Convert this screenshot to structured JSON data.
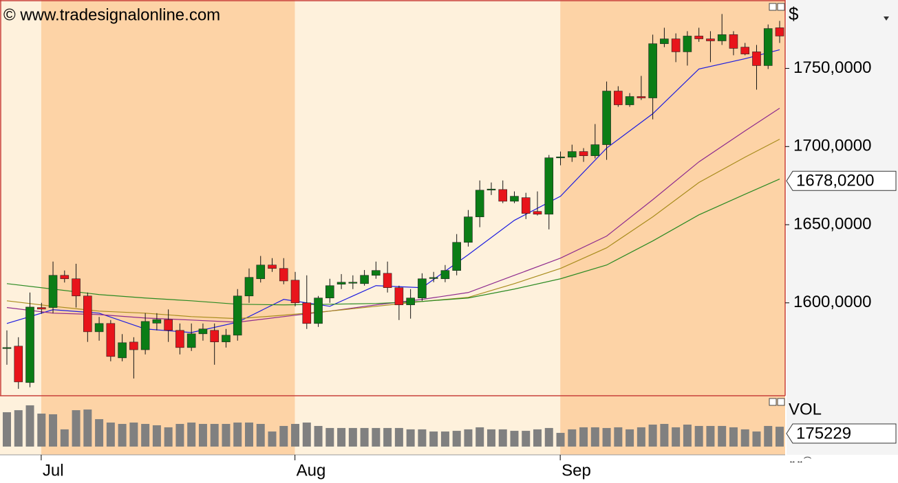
{
  "chart_data": {
    "type": "candlestick",
    "watermark": "© www.tradesignalonline.com",
    "y_axis_label": "$",
    "categories": [
      null,
      null,
      null,
      "Jul",
      null,
      null,
      null,
      null,
      null,
      null,
      null,
      null,
      null,
      null,
      null,
      null,
      null,
      null,
      null,
      null,
      null,
      null,
      null,
      null,
      null,
      "Aug",
      null,
      null,
      null,
      null,
      null,
      null,
      null,
      null,
      null,
      null,
      null,
      null,
      null,
      null,
      null,
      null,
      null,
      null,
      null,
      null,
      null,
      null,
      "Sep",
      null,
      null,
      null,
      null,
      null,
      null,
      null,
      null,
      null,
      null,
      null,
      null,
      null,
      null,
      null,
      null,
      null,
      null,
      null
    ],
    "open": [
      1571.0,
      1572.3,
      1549.0,
      1597.0,
      1597.0,
      1617.6,
      1615.4,
      1604.4,
      1581.5,
      1586.8,
      1564.8,
      1574.9,
      1570.0,
      1587.0,
      1589.3,
      1582.4,
      1571.4,
      1580.2,
      1582.4,
      1575.0,
      1579.3,
      1604.4,
      1615.4,
      1624.2,
      1622.0,
      1614.5,
      1600.0,
      1586.8,
      1603.1,
      1611.9,
      1613.0,
      1612.3,
      1617.6,
      1618.9,
      1609.7,
      1598.7,
      1603.1,
      1615.8,
      1615.4,
      1620.7,
      1638.7,
      1655.0,
      1672.5,
      1672.5,
      1665.0,
      1667.3,
      1658.5,
      1656.7,
      1693.2,
      1693.2,
      1696.8,
      1694.1,
      1701.2,
      1735.5,
      1726.7,
      1732.0,
      1731.1,
      1765.8,
      1768.9,
      1760.6,
      1770.7,
      1768.9,
      1767.6,
      1771.6,
      1763.6,
      1760.6,
      1751.8,
      1776.0
    ],
    "high": [
      1582.4,
      1578.0,
      1606.6,
      1600.0,
      1626.4,
      1620.7,
      1625.0,
      1606.6,
      1591.0,
      1589.0,
      1580.0,
      1578.0,
      1593.4,
      1593.4,
      1595.8,
      1586.8,
      1586.8,
      1586.8,
      1586.8,
      1583.3,
      1608.8,
      1622.0,
      1630.0,
      1628.6,
      1628.6,
      1619.8,
      1617.6,
      1604.4,
      1615.4,
      1618.4,
      1617.6,
      1621.0,
      1626.4,
      1626.4,
      1611.0,
      1608.8,
      1618.9,
      1619.8,
      1624.2,
      1644.0,
      1659.4,
      1678.3,
      1677.0,
      1678.3,
      1671.3,
      1670.4,
      1671.3,
      1694.6,
      1696.8,
      1701.2,
      1699.0,
      1714.4,
      1741.6,
      1738.6,
      1734.2,
      1745.2,
      1771.6,
      1776.0,
      1772.4,
      1773.8,
      1776.0,
      1773.8,
      1784.8,
      1773.8,
      1766.3,
      1765.0,
      1778.1,
      1780.4
    ],
    "low": [
      1560.4,
      1545.0,
      1546.0,
      1593.0,
      1593.4,
      1613.0,
      1597.0,
      1575.0,
      1575.8,
      1562.6,
      1562.6,
      1551.6,
      1567.0,
      1582.4,
      1575.0,
      1567.0,
      1569.2,
      1575.8,
      1560.4,
      1571.4,
      1575.8,
      1600.0,
      1613.0,
      1619.8,
      1611.9,
      1597.8,
      1583.3,
      1584.6,
      1600.0,
      1608.8,
      1608.8,
      1611.0,
      1615.4,
      1606.6,
      1589.0,
      1589.9,
      1601.3,
      1613.2,
      1613.2,
      1617.6,
      1636.0,
      1648.4,
      1669.0,
      1663.8,
      1663.8,
      1653.6,
      1655.9,
      1647.0,
      1688.0,
      1690.2,
      1690.2,
      1692.4,
      1691.5,
      1725.4,
      1725.4,
      1729.8,
      1717.4,
      1763.6,
      1754.0,
      1751.8,
      1767.0,
      1754.0,
      1765.0,
      1758.4,
      1758.4,
      1736.4,
      1749.6,
      1766.3
    ],
    "close": [
      1571.4,
      1549.4,
      1597.3,
      1596.0,
      1617.6,
      1615.4,
      1604.4,
      1581.5,
      1586.8,
      1565.7,
      1574.5,
      1570.0,
      1588.1,
      1589.3,
      1582.4,
      1571.4,
      1580.2,
      1583.3,
      1575.0,
      1579.3,
      1604.4,
      1616.3,
      1624.2,
      1622.0,
      1614.0,
      1600.0,
      1586.8,
      1603.1,
      1611.0,
      1613.2,
      1613.2,
      1617.6,
      1620.7,
      1609.7,
      1598.7,
      1603.1,
      1615.4,
      1616.2,
      1620.7,
      1638.7,
      1655.0,
      1672.1,
      1672.8,
      1665.0,
      1668.2,
      1657.2,
      1656.7,
      1692.8,
      1693.4,
      1696.8,
      1694.1,
      1701.2,
      1735.5,
      1726.7,
      1732.0,
      1731.1,
      1765.8,
      1768.9,
      1760.6,
      1770.7,
      1768.9,
      1767.6,
      1771.6,
      1762.8,
      1759.2,
      1751.8,
      1775.5,
      1770.7
    ],
    "up_color": "#0b7d16",
    "down_color": "#e8141b",
    "ylim": [
      1541,
      1792
    ],
    "yticks": [
      {
        "value": 1600,
        "label": "1600,0000"
      },
      {
        "value": 1650,
        "label": "1650,0000"
      },
      {
        "value": 1700,
        "label": "1700,0000"
      },
      {
        "value": 1750,
        "label": "1750,0000"
      }
    ],
    "last_price": {
      "value": 1678.02,
      "label": "1678,0200"
    },
    "overlay_x": [
      0,
      4,
      8,
      12,
      16,
      20,
      24,
      28,
      32,
      36,
      40,
      44,
      48,
      52,
      56,
      60,
      64,
      67
    ],
    "overlays": [
      {
        "color": "#1c1ce0",
        "values": [
          1586.8,
          1595.6,
          1593.4,
          1583.3,
          1581.0,
          1587.6,
          1602.2,
          1597.8,
          1611.0,
          1609.7,
          1630.8,
          1652.8,
          1668.2,
          1699.0,
          1721.0,
          1749.6,
          1756.2,
          1761.9
        ]
      },
      {
        "color": "#8e2a8e",
        "values": [
          1597.0,
          1593.4,
          1592.5,
          1590.3,
          1589.0,
          1587.6,
          1591.2,
          1594.7,
          1598.7,
          1602.2,
          1606.6,
          1617.6,
          1628.6,
          1642.7,
          1666.0,
          1690.2,
          1710.0,
          1724.5
        ]
      },
      {
        "color": "#a88c1c",
        "values": [
          1601.3,
          1597.8,
          1594.7,
          1593.4,
          1591.2,
          1589.9,
          1592.1,
          1594.7,
          1597.8,
          1600.9,
          1603.5,
          1612.3,
          1622.0,
          1635.2,
          1655.0,
          1677.0,
          1693.2,
          1704.7
        ]
      },
      {
        "color": "#2a8a22",
        "values": [
          1612.3,
          1608.8,
          1605.3,
          1603.1,
          1601.3,
          1599.1,
          1598.7,
          1599.1,
          1599.6,
          1600.9,
          1603.1,
          1608.8,
          1615.4,
          1624.2,
          1639.6,
          1656.3,
          1669.5,
          1679.2
        ]
      }
    ],
    "volume": {
      "label": "VOL",
      "color": "#808080",
      "ylim": [
        0,
        400000
      ],
      "values": [
        303000,
        321000,
        364000,
        291000,
        285000,
        152000,
        321000,
        327000,
        242000,
        212000,
        200000,
        212000,
        200000,
        188000,
        170000,
        200000,
        212000,
        200000,
        200000,
        200000,
        212000,
        212000,
        200000,
        133000,
        182000,
        200000,
        212000,
        182000,
        164000,
        164000,
        164000,
        164000,
        164000,
        164000,
        164000,
        152000,
        152000,
        133000,
        133000,
        139000,
        152000,
        170000,
        152000,
        152000,
        139000,
        139000,
        152000,
        164000,
        121000,
        152000,
        170000,
        170000,
        164000,
        170000,
        152000,
        170000,
        194000,
        200000,
        170000,
        194000,
        182000,
        182000,
        182000,
        170000,
        152000,
        133000,
        182000,
        175229
      ]
    }
  }
}
